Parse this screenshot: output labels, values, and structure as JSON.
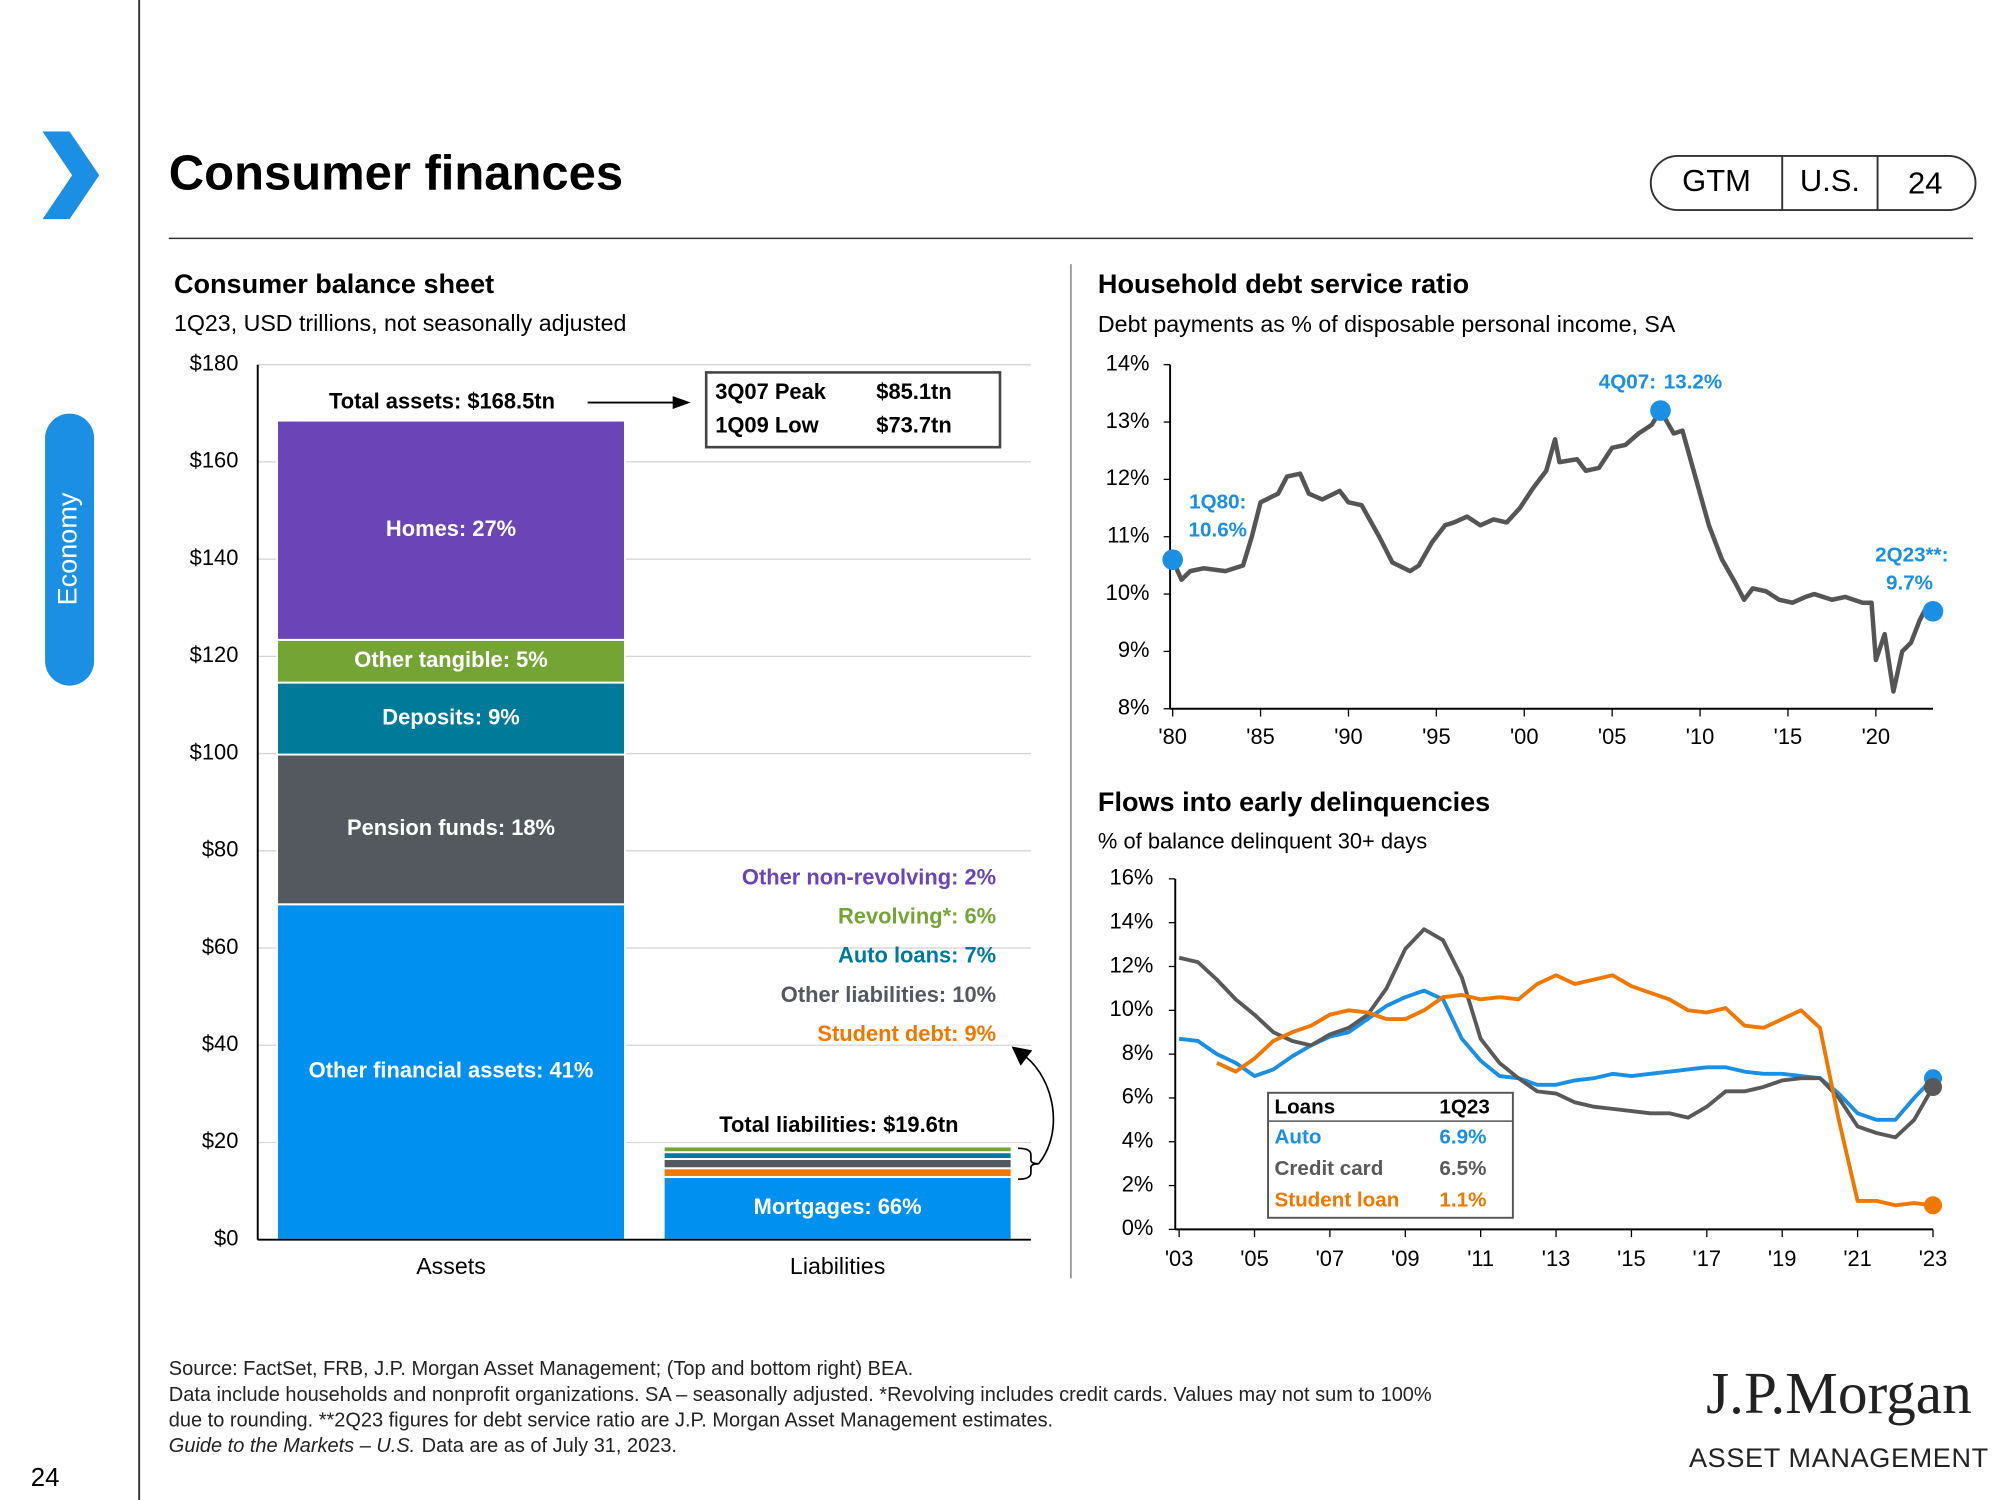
{
  "header": {
    "title": "Consumer finances",
    "badges": [
      "GTM",
      "U.S.",
      "24"
    ],
    "section": "Economy",
    "page_number": "24"
  },
  "chart_data": [
    {
      "type": "stacked_bar",
      "title": "Consumer balance sheet",
      "subtitle": "1Q23, USD trillions, not seasonally adjusted",
      "categories": [
        "Assets",
        "Liabilities"
      ],
      "series": [
        {
          "name": "Other financial assets: 41%",
          "color": "#0091f0",
          "values": [
            69.0,
            null
          ]
        },
        {
          "name": "Pension funds: 18%",
          "color": "#54595f",
          "values": [
            30.8,
            null
          ]
        },
        {
          "name": "Deposits: 9%",
          "color": "#007a99",
          "values": [
            14.8,
            null
          ]
        },
        {
          "name": "Other tangible:  5%",
          "color": "#74a534",
          "values": [
            8.8,
            null
          ]
        },
        {
          "name": "Homes: 27%",
          "color": "#6b44b8",
          "values": [
            45.1,
            null
          ]
        },
        {
          "name": "Mortgages: 66%",
          "color": "#0091f0",
          "values": [
            null,
            12.9
          ]
        },
        {
          "name": "Student debt: 9%",
          "color": "#f07800",
          "values": [
            null,
            1.8
          ]
        },
        {
          "name": "Other liabilities: 10%",
          "color": "#54595f",
          "values": [
            null,
            1.9
          ]
        },
        {
          "name": "Auto loans: 7%",
          "color": "#007a99",
          "values": [
            null,
            1.4
          ]
        },
        {
          "name": "Revolving*: 6%",
          "color": "#74a534",
          "values": [
            null,
            1.2
          ]
        },
        {
          "name": "Other non-revolving: 2%",
          "color": "#6b44b8",
          "values": [
            null,
            0.4
          ]
        }
      ],
      "ylim": [
        0,
        180
      ],
      "yticks": [
        {
          "value": 0,
          "label": "$0"
        },
        {
          "value": 20,
          "label": "$20"
        },
        {
          "value": 40,
          "label": "$40"
        },
        {
          "value": 60,
          "label": "$60"
        },
        {
          "value": 80,
          "label": "$80"
        },
        {
          "value": 100,
          "label": "$100"
        },
        {
          "value": 120,
          "label": "$120"
        },
        {
          "value": 140,
          "label": "$140"
        },
        {
          "value": 160,
          "label": "$160"
        },
        {
          "value": 180,
          "label": "$180"
        }
      ],
      "grid": true,
      "total_labels": [
        "Total assets: $168.5tn",
        "Total liabilities: $19.6tn"
      ],
      "callout_rows": [
        [
          "3Q07 Peak",
          "$85.1tn"
        ],
        [
          "1Q09 Low",
          "$73.7tn"
        ]
      ]
    },
    {
      "type": "line",
      "title": "Household debt service ratio",
      "subtitle": "Debt payments as % of disposable personal income, SA",
      "x": [
        1980,
        1980.5,
        1981,
        1981.75,
        1983,
        1984,
        1984.5,
        1985,
        1986,
        1986.5,
        1987.25,
        1987.75,
        1988.5,
        1989.5,
        1990,
        1990.75,
        1991.75,
        1992.5,
        1993.5,
        1994,
        1994.75,
        1995.5,
        1996,
        1996.75,
        1997.5,
        1998.25,
        1999,
        1999.75,
        2000.5,
        2001.25,
        2001.75,
        2002,
        2003,
        2003.5,
        2004.25,
        2005,
        2005.75,
        2006.5,
        2007.25,
        2007.75,
        2008.5,
        2009,
        2009.5,
        2010.5,
        2011.25,
        2012,
        2012.5,
        2013,
        2013.75,
        2014.5,
        2015.25,
        2016,
        2016.5,
        2017.5,
        2018.25,
        2019.25,
        2019.75,
        2020,
        2020.5,
        2021,
        2021.5,
        2022,
        2022.5,
        2022.75,
        2023.25
      ],
      "values": [
        10.6,
        10.25,
        10.4,
        10.45,
        10.4,
        10.5,
        11.0,
        11.6,
        11.75,
        12.05,
        12.1,
        11.75,
        11.65,
        11.8,
        11.6,
        11.55,
        11.0,
        10.55,
        10.4,
        10.5,
        10.9,
        11.2,
        11.25,
        11.35,
        11.2,
        11.3,
        11.25,
        11.5,
        11.85,
        12.15,
        12.7,
        12.3,
        12.35,
        12.15,
        12.2,
        12.55,
        12.6,
        12.8,
        12.95,
        13.2,
        12.8,
        12.85,
        12.3,
        11.2,
        10.6,
        10.2,
        9.9,
        10.1,
        10.05,
        9.9,
        9.85,
        9.95,
        10.0,
        9.9,
        9.95,
        9.85,
        9.85,
        8.85,
        9.3,
        8.3,
        9.0,
        9.15,
        9.55,
        9.7,
        9.7
      ],
      "color": "#555555",
      "xlim": [
        1980,
        2023.25
      ],
      "xticks": [
        {
          "value": 1980,
          "label": "'80"
        },
        {
          "value": 1985,
          "label": "'85"
        },
        {
          "value": 1990,
          "label": "'90"
        },
        {
          "value": 1995,
          "label": "'95"
        },
        {
          "value": 2000,
          "label": "'00"
        },
        {
          "value": 2005,
          "label": "'05"
        },
        {
          "value": 2010,
          "label": "'10"
        },
        {
          "value": 2015,
          "label": "'15"
        },
        {
          "value": 2020,
          "label": "'20"
        }
      ],
      "ylim": [
        8,
        14
      ],
      "yticks": [
        {
          "value": 8,
          "label": "8%"
        },
        {
          "value": 9,
          "label": "9%"
        },
        {
          "value": 10,
          "label": "10%"
        },
        {
          "value": 11,
          "label": "11%"
        },
        {
          "value": 12,
          "label": "12%"
        },
        {
          "value": 13,
          "label": "13%"
        },
        {
          "value": 14,
          "label": "14%"
        }
      ],
      "highlights": {
        "x": [
          1980,
          2007.75,
          2023.25
        ],
        "values": [
          10.6,
          13.2,
          9.7
        ],
        "names": [
          "1Q80:",
          "4Q07:",
          "2Q23**:"
        ],
        "value_labels": [
          "10.6%",
          "13.2%",
          "9.7%"
        ],
        "color": "#1a8fe3"
      }
    },
    {
      "type": "line",
      "title": "Flows into early delinquencies",
      "subtitle": "% of balance delinquent 30+ days",
      "x": [
        2003,
        2003.5,
        2004,
        2004.5,
        2005,
        2005.5,
        2006,
        2006.5,
        2007,
        2007.5,
        2008,
        2008.5,
        2009,
        2009.5,
        2010,
        2010.5,
        2011,
        2011.5,
        2012,
        2012.5,
        2013,
        2013.5,
        2014,
        2014.5,
        2015,
        2015.5,
        2016,
        2016.5,
        2017,
        2017.5,
        2018,
        2018.5,
        2019,
        2019.5,
        2020,
        2020.5,
        2021,
        2021.5,
        2022,
        2022.5,
        2023
      ],
      "series": [
        {
          "name": "Auto",
          "color": "#1a8fe3",
          "value_label": "6.9%",
          "values": [
            8.7,
            8.6,
            8.0,
            7.6,
            7.0,
            7.3,
            7.9,
            8.4,
            8.8,
            9.0,
            9.6,
            10.2,
            10.6,
            10.9,
            10.5,
            8.7,
            7.7,
            7.0,
            6.9,
            6.6,
            6.6,
            6.8,
            6.9,
            7.1,
            7.0,
            7.1,
            7.2,
            7.3,
            7.4,
            7.4,
            7.2,
            7.1,
            7.1,
            7.0,
            6.9,
            6.2,
            5.3,
            5.0,
            5.0,
            6.0,
            6.9
          ]
        },
        {
          "name": "Credit card",
          "color": "#595959",
          "value_label": "6.5%",
          "values": [
            12.4,
            12.2,
            11.4,
            10.5,
            9.8,
            9.0,
            8.6,
            8.4,
            8.9,
            9.2,
            9.8,
            11.0,
            12.8,
            13.7,
            13.2,
            11.5,
            8.7,
            7.6,
            6.9,
            6.3,
            6.2,
            5.8,
            5.6,
            5.5,
            5.4,
            5.3,
            5.3,
            5.1,
            5.6,
            6.3,
            6.3,
            6.5,
            6.8,
            6.9,
            6.9,
            6.0,
            4.7,
            4.4,
            4.2,
            5.0,
            6.5
          ]
        },
        {
          "name": "Student loan",
          "color": "#f07800",
          "value_label": "1.1%",
          "values": [
            null,
            null,
            7.6,
            7.2,
            7.8,
            8.6,
            9.0,
            9.3,
            9.8,
            10.0,
            9.9,
            9.6,
            9.6,
            10.0,
            10.6,
            10.7,
            10.5,
            10.6,
            10.5,
            11.2,
            11.6,
            11.2,
            11.4,
            11.6,
            11.1,
            10.8,
            10.5,
            10.0,
            9.9,
            10.1,
            9.3,
            9.2,
            9.6,
            10.0,
            9.2,
            5.0,
            1.3,
            1.3,
            1.1,
            1.2,
            1.1
          ]
        }
      ],
      "legend_header": [
        "Loans",
        "1Q23"
      ],
      "xlim": [
        2003,
        2023
      ],
      "xticks": [
        {
          "value": 2003,
          "label": "'03"
        },
        {
          "value": 2005,
          "label": "'05"
        },
        {
          "value": 2007,
          "label": "'07"
        },
        {
          "value": 2009,
          "label": "'09"
        },
        {
          "value": 2011,
          "label": "'11"
        },
        {
          "value": 2013,
          "label": "'13"
        },
        {
          "value": 2015,
          "label": "'15"
        },
        {
          "value": 2017,
          "label": "'17"
        },
        {
          "value": 2019,
          "label": "'19"
        },
        {
          "value": 2021,
          "label": "'21"
        },
        {
          "value": 2023,
          "label": "'23"
        }
      ],
      "ylim": [
        0,
        16
      ],
      "yticks": [
        {
          "value": 0,
          "label": "0%"
        },
        {
          "value": 2,
          "label": "2%"
        },
        {
          "value": 4,
          "label": "4%"
        },
        {
          "value": 6,
          "label": "6%"
        },
        {
          "value": 8,
          "label": "8%"
        },
        {
          "value": 10,
          "label": "10%"
        },
        {
          "value": 12,
          "label": "12%"
        },
        {
          "value": 14,
          "label": "14%"
        },
        {
          "value": 16,
          "label": "16%"
        }
      ]
    }
  ],
  "footer": {
    "source_lines": [
      "Source: FactSet, FRB, J.P. Morgan Asset Management; (Top and bottom right) BEA.",
      "Data include households and nonprofit organizations. SA – seasonally adjusted. *Revolving includes credit cards. Values may not sum to 100%",
      "due to rounding. **2Q23 figures for debt service ratio are J.P. Morgan Asset Management estimates."
    ],
    "guide": "Guide to the Markets – U.S.",
    "as_of": "Data are as of July 31, 2023.",
    "logo": "J.P.Morgan",
    "logo_sub": "ASSET MANAGEMENT"
  }
}
